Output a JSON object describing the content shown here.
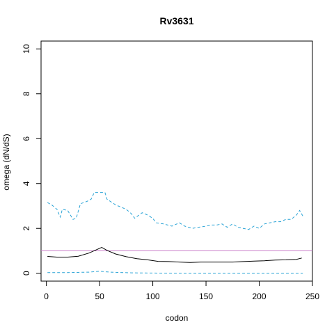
{
  "chart_data": {
    "type": "line",
    "title": "Rv3631",
    "xlabel": "codon",
    "ylabel": "omega (dN/dS)",
    "xlim": [
      -5,
      250
    ],
    "ylim": [
      -0.35,
      10.35
    ],
    "x_ticks": [
      0,
      50,
      100,
      150,
      200,
      250
    ],
    "y_ticks": [
      0,
      2,
      4,
      6,
      8,
      10
    ],
    "x_tick_labels": [
      "0",
      "50",
      "100",
      "150",
      "200",
      "250"
    ],
    "y_tick_labels": [
      "0",
      "2",
      "4",
      "6",
      "8",
      "10"
    ],
    "grid": false,
    "reference_line": {
      "y": 1,
      "color": "#c97fc9"
    },
    "series": [
      {
        "role": "estimate",
        "color": "#000000",
        "dash": "solid",
        "points": [
          [
            1,
            0.75
          ],
          [
            10,
            0.72
          ],
          [
            20,
            0.72
          ],
          [
            30,
            0.76
          ],
          [
            40,
            0.9
          ],
          [
            47,
            1.05
          ],
          [
            52,
            1.15
          ],
          [
            57,
            1.02
          ],
          [
            65,
            0.86
          ],
          [
            75,
            0.74
          ],
          [
            85,
            0.65
          ],
          [
            95,
            0.6
          ],
          [
            105,
            0.53
          ],
          [
            115,
            0.52
          ],
          [
            125,
            0.5
          ],
          [
            135,
            0.48
          ],
          [
            145,
            0.5
          ],
          [
            155,
            0.5
          ],
          [
            165,
            0.5
          ],
          [
            175,
            0.5
          ],
          [
            185,
            0.52
          ],
          [
            195,
            0.54
          ],
          [
            205,
            0.56
          ],
          [
            215,
            0.59
          ],
          [
            225,
            0.6
          ],
          [
            235,
            0.62
          ],
          [
            240,
            0.68
          ]
        ]
      },
      {
        "role": "upper bound",
        "color": "#29a3d6",
        "dash": "dashed",
        "points": [
          [
            1,
            3.15
          ],
          [
            5,
            3.05
          ],
          [
            10,
            2.85
          ],
          [
            13,
            2.5
          ],
          [
            15,
            2.85
          ],
          [
            20,
            2.8
          ],
          [
            25,
            2.4
          ],
          [
            28,
            2.45
          ],
          [
            32,
            3.1
          ],
          [
            38,
            3.2
          ],
          [
            42,
            3.3
          ],
          [
            45,
            3.6
          ],
          [
            55,
            3.6
          ],
          [
            57,
            3.3
          ],
          [
            65,
            3.05
          ],
          [
            75,
            2.85
          ],
          [
            80,
            2.65
          ],
          [
            83,
            2.45
          ],
          [
            90,
            2.7
          ],
          [
            95,
            2.6
          ],
          [
            100,
            2.45
          ],
          [
            103,
            2.25
          ],
          [
            110,
            2.2
          ],
          [
            118,
            2.1
          ],
          [
            125,
            2.25
          ],
          [
            130,
            2.1
          ],
          [
            137,
            2.0
          ],
          [
            143,
            2.05
          ],
          [
            150,
            2.1
          ],
          [
            155,
            2.15
          ],
          [
            160,
            2.15
          ],
          [
            165,
            2.2
          ],
          [
            170,
            2.05
          ],
          [
            175,
            2.2
          ],
          [
            180,
            2.05
          ],
          [
            185,
            2.0
          ],
          [
            190,
            1.95
          ],
          [
            195,
            2.1
          ],
          [
            200,
            2.0
          ],
          [
            205,
            2.2
          ],
          [
            210,
            2.25
          ],
          [
            215,
            2.3
          ],
          [
            220,
            2.3
          ],
          [
            225,
            2.4
          ],
          [
            230,
            2.4
          ],
          [
            235,
            2.6
          ],
          [
            238,
            2.8
          ],
          [
            241,
            2.55
          ]
        ]
      },
      {
        "role": "lower bound",
        "color": "#29a3d6",
        "dash": "dashed",
        "points": [
          [
            1,
            0.03
          ],
          [
            20,
            0.03
          ],
          [
            40,
            0.05
          ],
          [
            50,
            0.09
          ],
          [
            60,
            0.05
          ],
          [
            80,
            0.02
          ],
          [
            100,
            0.01
          ],
          [
            130,
            0.0
          ],
          [
            160,
            0.0
          ],
          [
            200,
            0.0
          ],
          [
            241,
            0.0
          ]
        ]
      }
    ]
  }
}
